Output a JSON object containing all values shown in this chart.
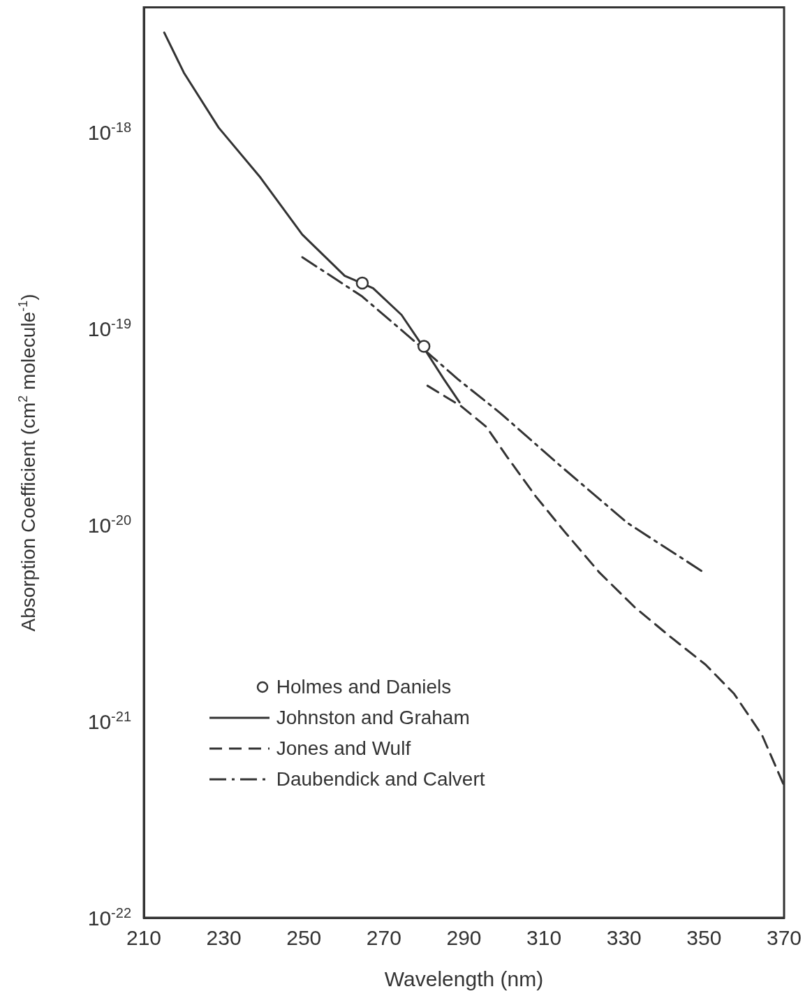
{
  "chart_data": {
    "type": "line",
    "xlabel": "Wavelength (nm)",
    "ylabel": "Absorption Coefficient (cm$^{2}$ molecule$^{-1}$)",
    "xlim": [
      210,
      370
    ],
    "xticks": [
      210,
      230,
      250,
      270,
      290,
      310,
      330,
      350,
      370
    ],
    "ylim": [
      1e-22,
      4.3e-18
    ],
    "yticks": [
      {
        "value": 1e-22,
        "label": "10$^{-22}$"
      },
      {
        "value": 1e-21,
        "label": "10$^{-21}$"
      },
      {
        "value": 1e-20,
        "label": "10$^{-20}$"
      },
      {
        "value": 1e-19,
        "label": "10$^{-19}$"
      },
      {
        "value": 1e-18,
        "label": "10$^{-18}$"
      }
    ],
    "log": "y",
    "legend": "bottom left",
    "series": [
      {
        "name": "Holmes and Daniels",
        "type": "scatter",
        "marker": "circle",
        "color": "#333333",
        "x": [
          264.6,
          280
        ],
        "values": [
          1.7e-19,
          8.1e-20
        ]
      },
      {
        "name": "Johnston and Graham",
        "type": "line",
        "line_style": "solid",
        "marker": "none",
        "color": "#333333",
        "x": [
          215.1,
          220,
          228.7,
          239,
          249.6,
          260.2,
          267.3,
          274.4,
          279.7,
          285,
          288.9
        ],
        "values": [
          3.2e-18,
          2e-18,
          1.05e-18,
          5.9e-19,
          3e-19,
          1.85e-19,
          1.6e-19,
          1.17e-19,
          8.1e-20,
          5.5e-20,
          4.2e-20
        ]
      },
      {
        "name": "Jones and Wulf",
        "type": "line",
        "line_style": "dashed",
        "marker": "none",
        "color": "#333333",
        "x": [
          280.9,
          289.4,
          295.6,
          300.9,
          308,
          315,
          323.9,
          332.7,
          341.5,
          350.4,
          357.5,
          364.5,
          370
        ],
        "values": [
          5.1e-20,
          4e-20,
          3.15e-20,
          2.2e-20,
          1.39e-20,
          9.3e-21,
          5.7e-21,
          3.8e-21,
          2.7e-21,
          1.94e-21,
          1.38e-21,
          8.5e-22,
          4.7e-22
        ]
      },
      {
        "name": "Daubendick and Calvert",
        "type": "line",
        "line_style": "dashdot",
        "marker": "none",
        "color": "#333333",
        "x": [
          249.6,
          264.6,
          277.9,
          288.5,
          299.1,
          313.3,
          330.9,
          349.5
        ],
        "values": [
          2.3e-19,
          1.45e-19,
          8.5e-20,
          5.5e-20,
          3.7e-20,
          2.06e-20,
          1.02e-20,
          5.8e-21
        ]
      }
    ]
  }
}
